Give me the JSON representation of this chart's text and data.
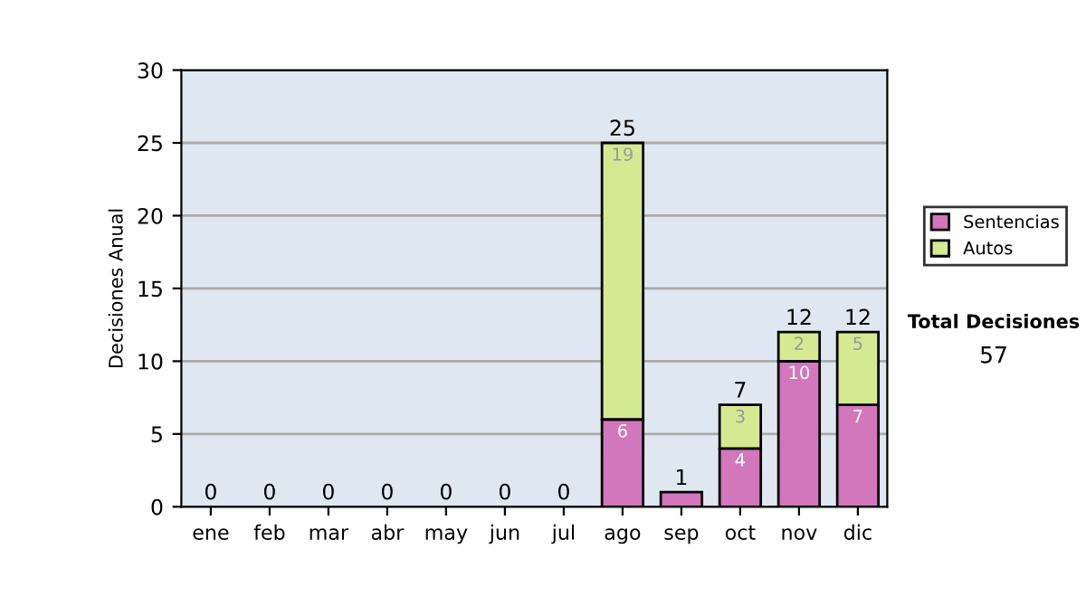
{
  "chart_data": {
    "type": "bar",
    "stacked": true,
    "ylabel": "Decisiones Anual",
    "categories": [
      "ene",
      "feb",
      "mar",
      "abr",
      "may",
      "jun",
      "jul",
      "ago",
      "sep",
      "oct",
      "nov",
      "dic"
    ],
    "series": [
      {
        "name": "Sentencias",
        "color": "#d377bd",
        "values": [
          0,
          0,
          0,
          0,
          0,
          0,
          0,
          6,
          1,
          4,
          10,
          7
        ],
        "value_labels": [
          null,
          null,
          null,
          null,
          null,
          null,
          null,
          "6",
          null,
          "4",
          "10",
          "7"
        ]
      },
      {
        "name": "Autos",
        "color": "#d4ea92",
        "values": [
          0,
          0,
          0,
          0,
          0,
          0,
          0,
          19,
          0,
          3,
          2,
          5
        ],
        "value_labels": [
          null,
          null,
          null,
          null,
          null,
          null,
          null,
          "19",
          null,
          "3",
          "2",
          "5"
        ]
      }
    ],
    "totals": [
      "0",
      "0",
      "0",
      "0",
      "0",
      "0",
      "0",
      "25",
      "1",
      "7",
      "12",
      "12"
    ],
    "ylim": [
      0,
      30
    ],
    "yticks": [
      0,
      5,
      10,
      15,
      20,
      25,
      30
    ],
    "grid": "y",
    "legend": "right",
    "annotations": [
      "Total Decisiones",
      "57"
    ]
  }
}
